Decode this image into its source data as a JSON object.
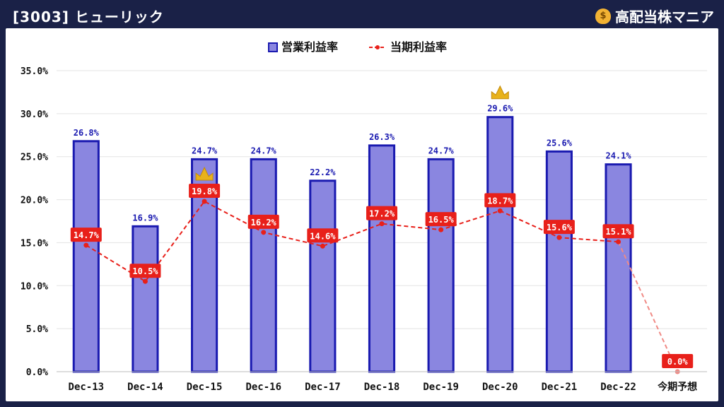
{
  "header": {
    "title": "[3003] ヒューリック",
    "brand": "高配当株マニア",
    "brand_icon": "money-bag-icon"
  },
  "chart_data": {
    "type": "bar",
    "categories": [
      "Dec-13",
      "Dec-14",
      "Dec-15",
      "Dec-16",
      "Dec-17",
      "Dec-18",
      "Dec-19",
      "Dec-20",
      "Dec-21",
      "Dec-22",
      "今期予想"
    ],
    "series": [
      {
        "name": "営業利益率",
        "type": "bar",
        "values": [
          26.8,
          16.9,
          24.7,
          24.7,
          22.2,
          26.3,
          24.7,
          29.6,
          25.6,
          24.1,
          null
        ],
        "labels": [
          "26.8%",
          "16.9%",
          "24.7%",
          "24.7%",
          "22.2%",
          "26.3%",
          "24.7%",
          "29.6%",
          "25.6%",
          "24.1%",
          ""
        ],
        "color": "#8a86e0",
        "border": "#1a1ab0"
      },
      {
        "name": "当期利益率",
        "type": "line",
        "values": [
          14.7,
          10.5,
          19.8,
          16.2,
          14.6,
          17.2,
          16.5,
          18.7,
          15.6,
          15.1,
          0.0
        ],
        "labels": [
          "14.7%",
          "10.5%",
          "19.8%",
          "16.2%",
          "14.6%",
          "17.2%",
          "16.5%",
          "18.7%",
          "15.6%",
          "15.1%",
          "0.0%"
        ],
        "color": "#e8201a"
      }
    ],
    "yticks": [
      "0.0%",
      "5.0%",
      "10.0%",
      "15.0%",
      "20.0%",
      "25.0%",
      "30.0%",
      "35.0%"
    ],
    "ylim": [
      0,
      35
    ],
    "grid": true,
    "legend": "top-center",
    "crowns": [
      {
        "series": "営業利益率",
        "category": "Dec-20"
      },
      {
        "series": "当期利益率",
        "category": "Dec-15"
      }
    ],
    "crown_color": "#e8b21a"
  }
}
